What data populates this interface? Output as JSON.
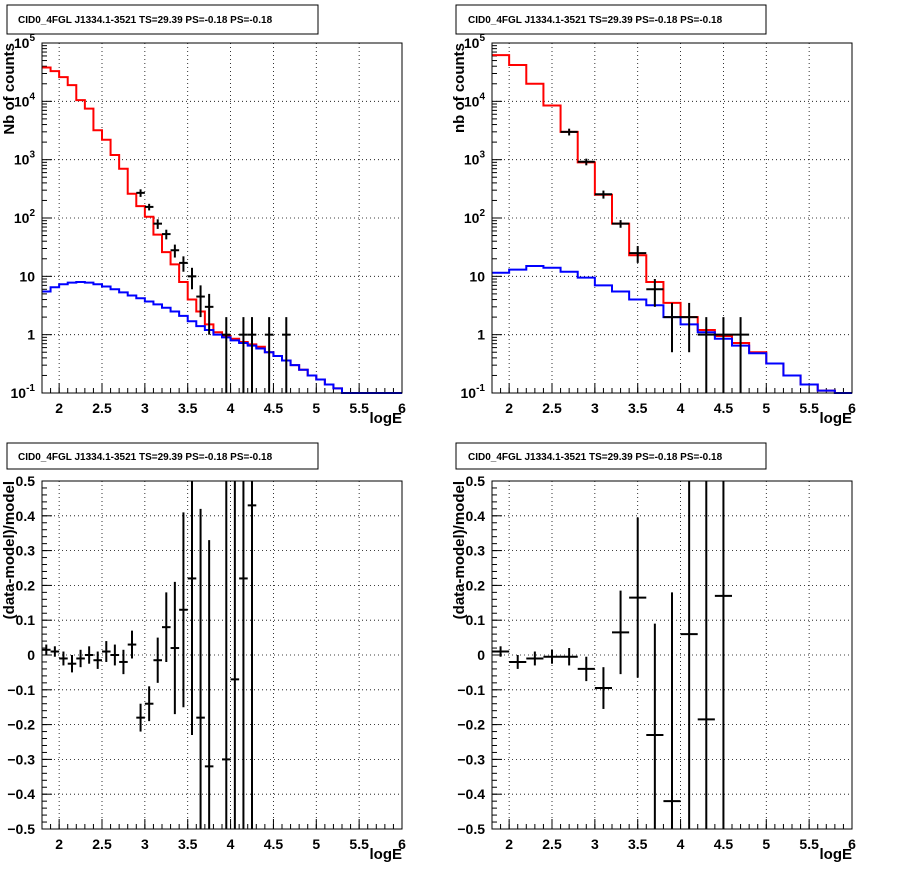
{
  "chart_data": [
    {
      "type": "step",
      "title": "CID0_4FGL J1334.1-3521 TS=29.39 PS=-0.18 PS=-0.18",
      "xlabel": "logE",
      "ylabel": "Nb of counts",
      "xlim": [
        1.8,
        6.0
      ],
      "ylim": [
        0.1,
        100000
      ],
      "yscale": "log",
      "grid": true,
      "x_ticks": [
        "2",
        "2.5",
        "3",
        "3.5",
        "4",
        "4.5",
        "5",
        "5.5",
        "6"
      ],
      "y_ticks": [
        "10^-1",
        "1",
        "10",
        "10^2",
        "10^3",
        "10^4",
        "10^5"
      ],
      "bin_width": 0.1,
      "series": [
        {
          "role": "total model",
          "color": "#ff0000",
          "x": [
            1.85,
            1.95,
            2.05,
            2.15,
            2.25,
            2.35,
            2.45,
            2.55,
            2.65,
            2.75,
            2.85,
            2.95,
            3.05,
            3.15,
            3.25,
            3.35,
            3.45,
            3.55,
            3.65,
            3.75,
            3.85,
            3.95,
            4.05,
            4.15,
            4.25,
            4.35,
            4.45,
            4.55,
            4.65,
            4.75,
            4.85,
            4.95,
            5.05,
            5.15,
            5.25,
            5.35,
            5.45,
            5.55,
            5.65,
            5.75,
            5.85,
            5.95
          ],
          "y": [
            38000,
            33000,
            26000,
            19000,
            10500,
            7500,
            3200,
            2200,
            1200,
            700,
            260,
            160,
            105,
            52,
            26,
            16,
            8,
            4,
            2.5,
            1.5,
            1.1,
            0.95,
            0.85,
            0.75,
            0.68,
            0.62,
            0.5,
            0.43,
            0.36,
            0.3,
            0.25,
            0.2,
            0.17,
            0.14,
            0.12,
            0.1,
            0.1,
            0.1,
            0.1,
            0.1,
            0.1,
            0.1
          ]
        },
        {
          "role": "background model",
          "color": "#0000ff",
          "x": [
            1.85,
            1.95,
            2.05,
            2.15,
            2.25,
            2.35,
            2.45,
            2.55,
            2.65,
            2.75,
            2.85,
            2.95,
            3.05,
            3.15,
            3.25,
            3.35,
            3.45,
            3.55,
            3.65,
            3.75,
            3.85,
            3.95,
            4.05,
            4.15,
            4.25,
            4.35,
            4.45,
            4.55,
            4.65,
            4.75,
            4.85,
            4.95,
            5.05,
            5.15,
            5.25,
            5.35,
            5.45,
            5.55,
            5.65,
            5.75,
            5.85,
            5.95
          ],
          "y": [
            5.5,
            6.5,
            7.3,
            7.8,
            8,
            7.8,
            7.3,
            6.7,
            6,
            5.3,
            4.7,
            4.2,
            3.7,
            3.3,
            2.9,
            2.5,
            2.1,
            1.7,
            1.4,
            1.2,
            1,
            0.9,
            0.8,
            0.72,
            0.65,
            0.58,
            0.5,
            0.43,
            0.36,
            0.3,
            0.25,
            0.2,
            0.17,
            0.14,
            0.12,
            0.1,
            0.1,
            0.1,
            0.1,
            0.1,
            0.1,
            0.1
          ]
        },
        {
          "role": "data",
          "color": "#000000",
          "points": [
            {
              "x": 2.95,
              "y": 270,
              "err": 40
            },
            {
              "x": 3.05,
              "y": 155,
              "err": 20
            },
            {
              "x": 3.15,
              "y": 80,
              "err": 15
            },
            {
              "x": 3.25,
              "y": 53,
              "err": 10
            },
            {
              "x": 3.35,
              "y": 28,
              "err": 7
            },
            {
              "x": 3.45,
              "y": 17,
              "err": 5
            },
            {
              "x": 3.55,
              "y": 10,
              "err": 4
            },
            {
              "x": 3.65,
              "y": 4.5,
              "err": 2.5
            },
            {
              "x": 3.75,
              "y": 3,
              "err": 2
            },
            {
              "x": 3.95,
              "y": 1,
              "err": 1
            },
            {
              "x": 4.15,
              "y": 1,
              "err": 1
            },
            {
              "x": 4.25,
              "y": 1,
              "err": 1
            },
            {
              "x": 4.45,
              "y": 1,
              "err": 1
            },
            {
              "x": 4.65,
              "y": 1,
              "err": 1
            }
          ]
        }
      ]
    },
    {
      "type": "step",
      "title": "CID0_4FGL J1334.1-3521 TS=29.39 PS=-0.18 PS=-0.18",
      "xlabel": "logE",
      "ylabel": "nb of counts",
      "xlim": [
        1.8,
        6.0
      ],
      "ylim": [
        0.1,
        100000
      ],
      "yscale": "log",
      "grid": true,
      "x_ticks": [
        "2",
        "2.5",
        "3",
        "3.5",
        "4",
        "4.5",
        "5",
        "5.5",
        "6"
      ],
      "y_ticks": [
        "10^-1",
        "1",
        "10",
        "10^2",
        "10^3",
        "10^4",
        "10^5"
      ],
      "bin_width": 0.2,
      "series": [
        {
          "role": "total model",
          "color": "#ff0000",
          "x": [
            1.9,
            2.1,
            2.3,
            2.5,
            2.7,
            2.9,
            3.1,
            3.3,
            3.5,
            3.7,
            3.9,
            4.1,
            4.3,
            4.5,
            4.7,
            4.9,
            5.1,
            5.3,
            5.5,
            5.7,
            5.9
          ],
          "y": [
            62000,
            42000,
            20000,
            8500,
            3000,
            900,
            250,
            80,
            23,
            8,
            3.5,
            2,
            1.2,
            0.95,
            0.72,
            0.5,
            0.32,
            0.2,
            0.14,
            0.11,
            0.1
          ]
        },
        {
          "role": "background model",
          "color": "#0000ff",
          "x": [
            1.9,
            2.1,
            2.3,
            2.5,
            2.7,
            2.9,
            3.1,
            3.3,
            3.5,
            3.7,
            3.9,
            4.1,
            4.3,
            4.5,
            4.7,
            4.9,
            5.1,
            5.3,
            5.5,
            5.7,
            5.9
          ],
          "y": [
            11.5,
            13,
            15,
            14,
            12,
            9.5,
            7,
            5.5,
            4,
            3.2,
            2,
            1.5,
            1.1,
            0.85,
            0.65,
            0.48,
            0.32,
            0.2,
            0.14,
            0.11,
            0.1
          ]
        },
        {
          "role": "data",
          "color": "#000000",
          "points": [
            {
              "x": 2.7,
              "y": 3000,
              "err": 400
            },
            {
              "x": 2.9,
              "y": 920,
              "err": 120
            },
            {
              "x": 3.1,
              "y": 255,
              "err": 40
            },
            {
              "x": 3.3,
              "y": 80,
              "err": 12
            },
            {
              "x": 3.5,
              "y": 25,
              "err": 8
            },
            {
              "x": 3.7,
              "y": 6,
              "err": 3
            },
            {
              "x": 3.9,
              "y": 2,
              "err": 1.5
            },
            {
              "x": 4.1,
              "y": 2,
              "err": 1.5
            },
            {
              "x": 4.3,
              "y": 1,
              "err": 1
            },
            {
              "x": 4.5,
              "y": 1,
              "err": 1
            },
            {
              "x": 4.7,
              "y": 1,
              "err": 1
            }
          ]
        }
      ]
    },
    {
      "type": "scatter",
      "title": "CID0_4FGL J1334.1-3521 TS=29.39 PS=-0.18 PS=-0.18",
      "xlabel": "logE",
      "ylabel": "(data-model)/model",
      "xlim": [
        1.8,
        6.0
      ],
      "ylim": [
        -0.5,
        0.5
      ],
      "grid": true,
      "x_ticks": [
        "2",
        "2.5",
        "3",
        "3.5",
        "4",
        "4.5",
        "5",
        "5.5",
        "6"
      ],
      "y_ticks": [
        "-0.5",
        "-0.4",
        "-0.3",
        "-0.2",
        "-0.1",
        "0",
        "0.1",
        "0.2",
        "0.3",
        "0.4",
        "0.5"
      ],
      "bin_width": 0.1,
      "points": [
        {
          "x": 1.85,
          "y": 0.015,
          "err": 0.015
        },
        {
          "x": 1.95,
          "y": 0.01,
          "err": 0.015
        },
        {
          "x": 2.05,
          "y": -0.01,
          "err": 0.02
        },
        {
          "x": 2.15,
          "y": -0.025,
          "err": 0.025
        },
        {
          "x": 2.25,
          "y": -0.01,
          "err": 0.025
        },
        {
          "x": 2.35,
          "y": 0.0,
          "err": 0.025
        },
        {
          "x": 2.45,
          "y": -0.015,
          "err": 0.025
        },
        {
          "x": 2.55,
          "y": 0.01,
          "err": 0.03
        },
        {
          "x": 2.65,
          "y": 0.0,
          "err": 0.03
        },
        {
          "x": 2.75,
          "y": -0.02,
          "err": 0.035
        },
        {
          "x": 2.85,
          "y": 0.03,
          "err": 0.04
        },
        {
          "x": 2.95,
          "y": -0.18,
          "err": 0.04
        },
        {
          "x": 3.05,
          "y": -0.14,
          "err": 0.05
        },
        {
          "x": 3.15,
          "y": -0.015,
          "err": 0.065
        },
        {
          "x": 3.25,
          "y": 0.08,
          "err": 0.1
        },
        {
          "x": 3.35,
          "y": 0.02,
          "err": 0.19
        },
        {
          "x": 3.45,
          "y": 0.13,
          "err": 0.28
        },
        {
          "x": 3.55,
          "y": 0.22,
          "err": 0.45
        },
        {
          "x": 3.65,
          "y": -0.18,
          "err": 0.6
        },
        {
          "x": 3.75,
          "y": -0.32,
          "err": 0.65
        },
        {
          "x": 3.95,
          "y": -0.3,
          "err": 0.85
        },
        {
          "x": 4.05,
          "y": -0.07,
          "err": 1.0
        },
        {
          "x": 4.15,
          "y": 0.22,
          "err": 1.1
        },
        {
          "x": 4.25,
          "y": 0.43,
          "err": 1.2
        }
      ]
    },
    {
      "type": "scatter",
      "title": "CID0_4FGL J1334.1-3521 TS=29.39 PS=-0.18 PS=-0.18",
      "xlabel": "logE",
      "ylabel": "(data-model)/model",
      "xlim": [
        1.8,
        6.0
      ],
      "ylim": [
        -0.5,
        0.5
      ],
      "grid": true,
      "x_ticks": [
        "2",
        "2.5",
        "3",
        "3.5",
        "4",
        "4.5",
        "5",
        "5.5",
        "6"
      ],
      "y_ticks": [
        "-0.5",
        "-0.4",
        "-0.3",
        "-0.2",
        "-0.1",
        "0",
        "0.1",
        "0.2",
        "0.3",
        "0.4",
        "0.5"
      ],
      "bin_width": 0.2,
      "points": [
        {
          "x": 1.9,
          "y": 0.01,
          "err": 0.015
        },
        {
          "x": 2.1,
          "y": -0.02,
          "err": 0.02
        },
        {
          "x": 2.3,
          "y": -0.01,
          "err": 0.02
        },
        {
          "x": 2.5,
          "y": -0.005,
          "err": 0.02
        },
        {
          "x": 2.7,
          "y": -0.005,
          "err": 0.025
        },
        {
          "x": 2.9,
          "y": -0.04,
          "err": 0.035
        },
        {
          "x": 3.1,
          "y": -0.095,
          "err": 0.06
        },
        {
          "x": 3.3,
          "y": 0.065,
          "err": 0.12
        },
        {
          "x": 3.5,
          "y": 0.165,
          "err": 0.23
        },
        {
          "x": 3.7,
          "y": -0.23,
          "err": 0.32
        },
        {
          "x": 3.9,
          "y": -0.42,
          "err": 0.6
        },
        {
          "x": 4.1,
          "y": 0.06,
          "err": 0.8
        },
        {
          "x": 4.3,
          "y": -0.185,
          "err": 0.9
        },
        {
          "x": 4.5,
          "y": 0.17,
          "err": 1.0
        }
      ]
    }
  ]
}
